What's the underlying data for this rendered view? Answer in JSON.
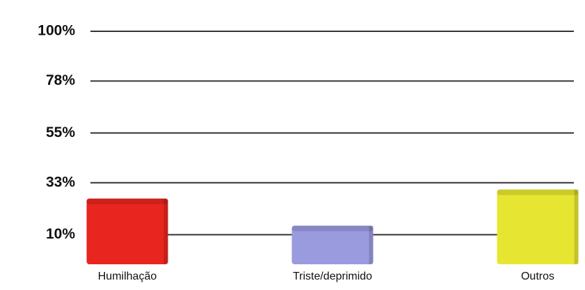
{
  "chart_data": {
    "type": "bar",
    "categories": [
      "Humilhação",
      "Triste/deprimido",
      "Outros"
    ],
    "values": [
      26,
      14,
      30
    ],
    "colors": [
      "#e8251f",
      "#9a9ade",
      "#e6e632"
    ],
    "ylim": [
      0,
      100
    ],
    "yticks": [
      {
        "value": 10,
        "label": "10%"
      },
      {
        "value": 33,
        "label": "33%"
      },
      {
        "value": 55,
        "label": "55%"
      },
      {
        "value": 78,
        "label": "78%"
      },
      {
        "value": 100,
        "label": "100%"
      }
    ],
    "grid": true
  }
}
